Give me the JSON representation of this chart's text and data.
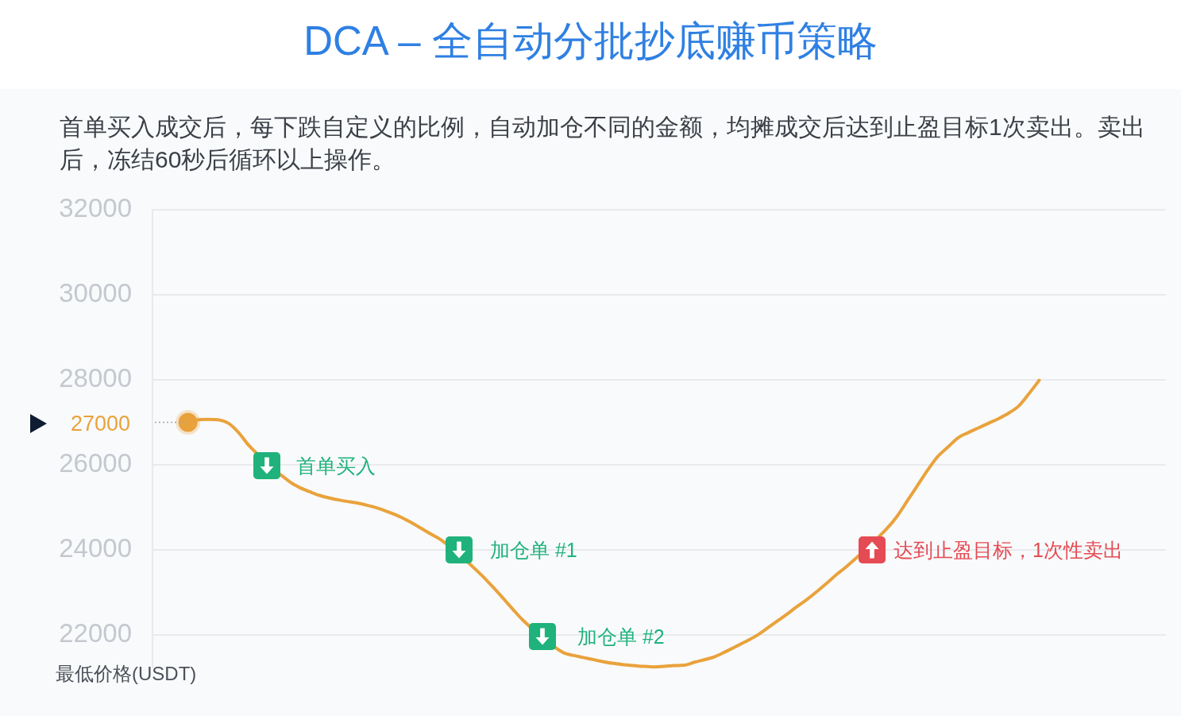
{
  "chart_data": {
    "type": "line",
    "title": "DCA – 全自动分批抄底赚币策略",
    "subtitle": "首单买入成交后，每下跌自定义的比例，自动加仓不同的金额，均摊成交后达到止盈目标1次卖出。卖出后，冻结60秒后循环以上操作。",
    "ylabel": "最低价格(USDT)",
    "categories": [
      null,
      null,
      null,
      null,
      null,
      null,
      null,
      null,
      null,
      null,
      null,
      null,
      null,
      null,
      null,
      null,
      null,
      null,
      null,
      null,
      null,
      null,
      null,
      null,
      null,
      null,
      null,
      null,
      null,
      null,
      null,
      null,
      null,
      null,
      null,
      null,
      null,
      null,
      null,
      null,
      null,
      null,
      null,
      null,
      null,
      null,
      null,
      null,
      null,
      null,
      null,
      null,
      null,
      null,
      null,
      null,
      null,
      null,
      null,
      null,
      null,
      null,
      null,
      null,
      null,
      null,
      null,
      null,
      null,
      null,
      null,
      null,
      null,
      null,
      null,
      null,
      null,
      null,
      null,
      null,
      null,
      null,
      null,
      null,
      null,
      null,
      null,
      null,
      null,
      null,
      null,
      null,
      null,
      null,
      null,
      null,
      null,
      null,
      null,
      null
    ],
    "series": [
      {
        "color": "#e9a23b",
        "values": [
          null,
          null,
          null,
          27000,
          27060,
          27070,
          27060,
          26980,
          26760,
          26460,
          null,
          null,
          null,
          25610,
          25470,
          25370,
          25280,
          25220,
          25170,
          25130,
          25090,
          25030,
          24960,
          24870,
          24770,
          24650,
          24510,
          24370,
          24230,
          null,
          null,
          null,
          23400,
          23150,
          22890,
          22620,
          22360,
          null,
          null,
          null,
          21590,
          21520,
          21470,
          21420,
          21370,
          21330,
          21300,
          21280,
          21260,
          21250,
          21260,
          21280,
          21290,
          21360,
          21420,
          21490,
          21600,
          21720,
          21840,
          21970,
          22130,
          22300,
          22470,
          22650,
          22820,
          23010,
          23210,
          23420,
          23610,
          null,
          null,
          null,
          24510,
          24800,
          25160,
          25520,
          25880,
          26200,
          26420,
          26640,
          26760,
          26870,
          26980,
          27090,
          27220,
          27390,
          27680,
          27990,
          null,
          null,
          null,
          null,
          null,
          null,
          null,
          null,
          null,
          null,
          null,
          null
        ]
      },
      {
        "type": "scatter",
        "color": "#e9a23b",
        "marker": "circle",
        "values": [
          null,
          null,
          null,
          27000,
          null,
          null,
          null,
          null,
          null,
          null,
          null,
          null,
          null,
          null,
          null,
          null,
          null,
          null,
          null,
          null,
          null,
          null,
          null,
          null,
          null,
          null,
          null,
          null,
          null,
          null,
          null,
          null,
          null,
          null,
          null,
          null,
          null,
          null,
          null,
          null,
          null,
          null,
          null,
          null,
          null,
          null,
          null,
          null,
          null,
          null,
          null,
          null,
          null,
          null,
          null,
          null,
          null,
          null,
          null,
          null,
          null,
          null,
          null,
          null,
          null,
          null,
          null,
          null,
          null,
          null,
          null,
          null,
          null,
          null,
          null,
          null,
          null,
          null,
          null,
          null,
          null,
          null,
          null,
          null,
          null,
          null,
          null,
          null,
          null,
          null,
          null,
          null,
          null,
          null,
          null,
          null,
          null,
          null,
          null,
          null
        ]
      }
    ],
    "ylim": [
      21250,
      32000
    ],
    "yticks": [
      22000,
      24000,
      26000,
      28000,
      30000,
      32000
    ],
    "ref_lines": [
      {
        "axis": "y",
        "value": 27000,
        "label": "27000",
        "line_style": "dotted"
      }
    ],
    "annotations": [
      "首单买入",
      "加仓单 #1",
      "加仓单 #2",
      "达到止盈目标，1次性卖出"
    ],
    "grid": "y",
    "legend": false,
    "tick_labels": "y"
  }
}
